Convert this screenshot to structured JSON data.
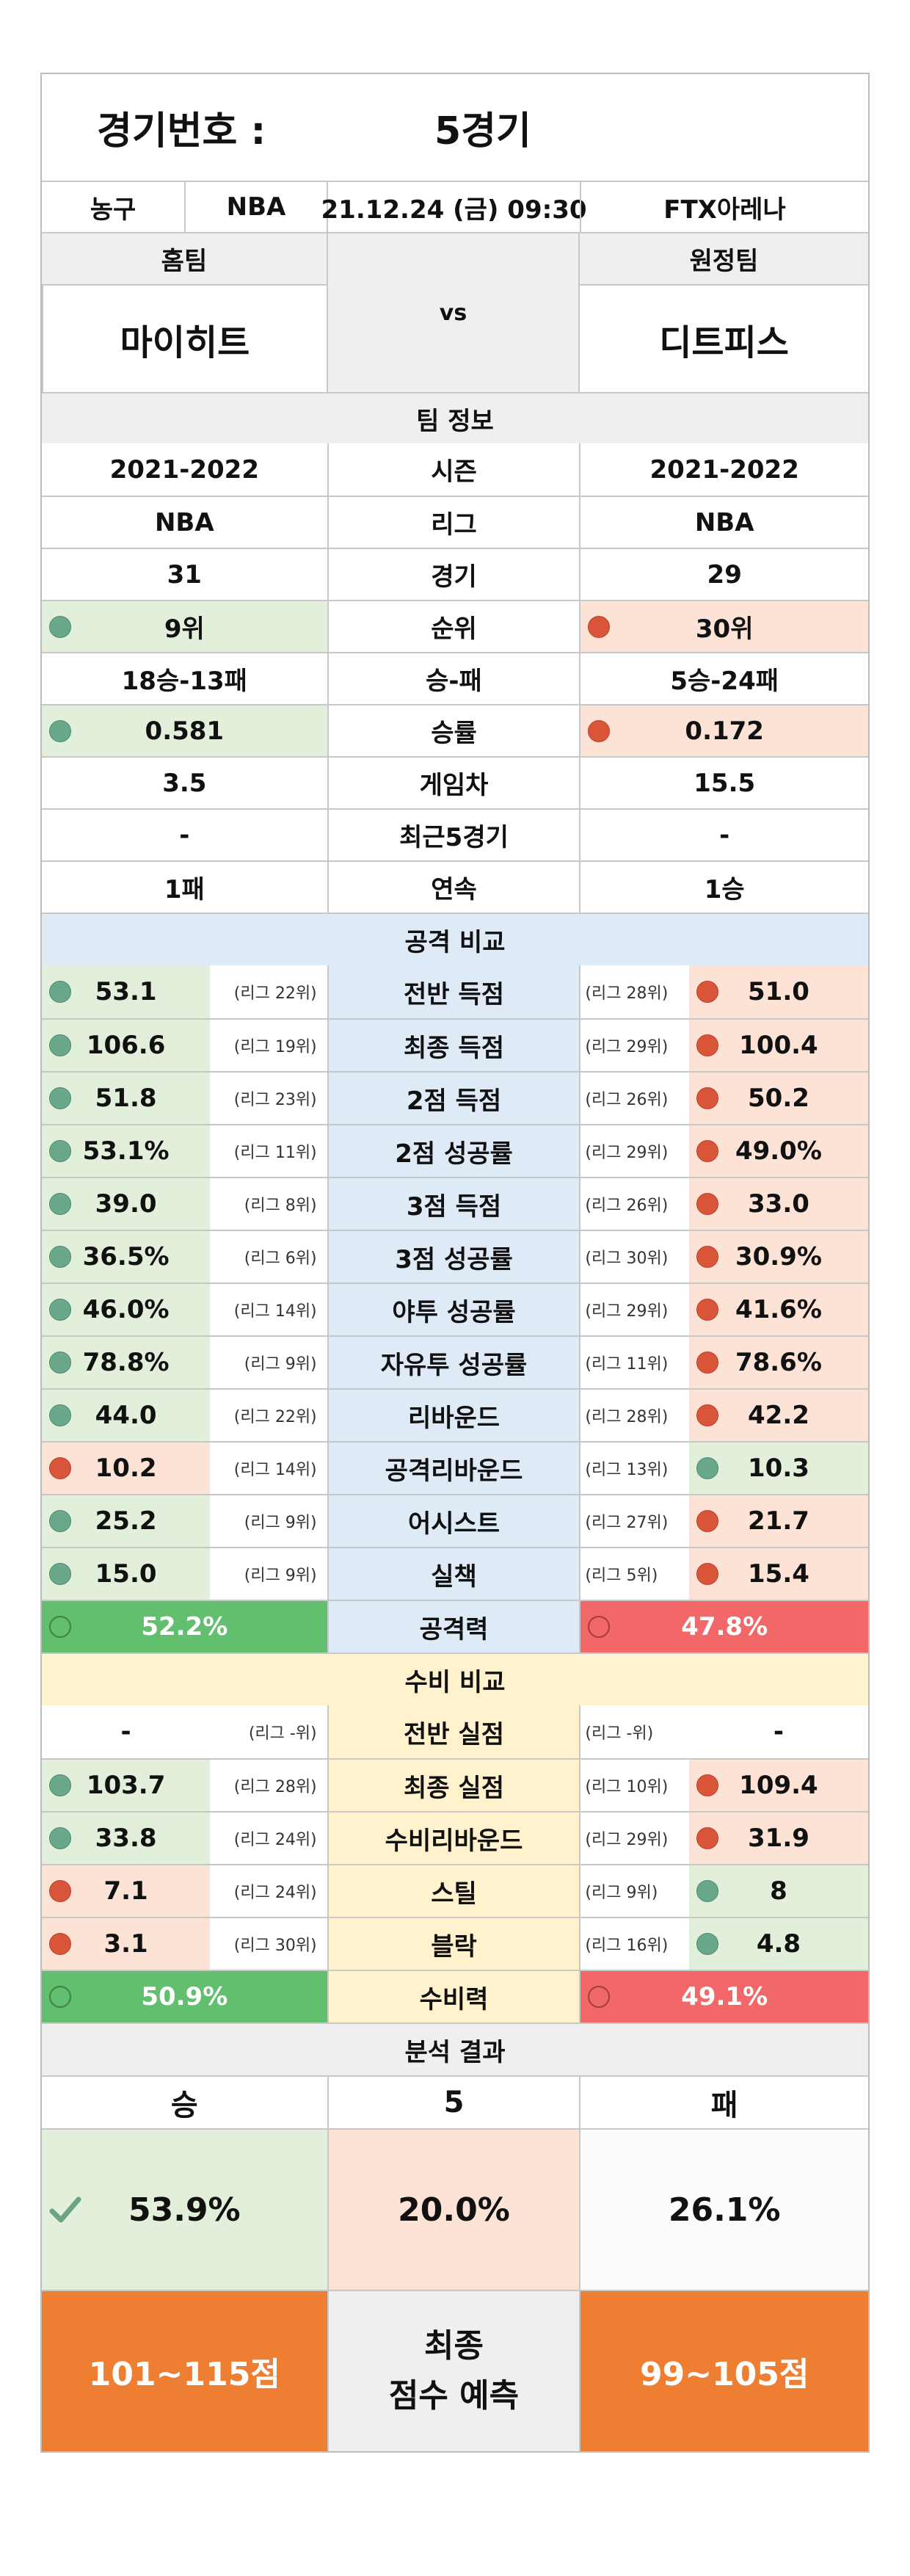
{
  "header": {
    "label": "경기번호 :",
    "value": "5경기"
  },
  "info": {
    "sport": "농구",
    "league": "NBA",
    "datetime": "21.12.24 (금) 09:30",
    "venue": "FTX아레나"
  },
  "teams": {
    "home_label": "홈팀",
    "away_label": "원정팀",
    "home": "마이히트",
    "away": "디트피스",
    "vs": "vs"
  },
  "team_info": {
    "section": "팀 정보",
    "rows": [
      {
        "home": "2021-2022",
        "label": "시즌",
        "away": "2021-2022"
      },
      {
        "home": "NBA",
        "label": "리그",
        "away": "NBA"
      },
      {
        "home": "31",
        "label": "경기",
        "away": "29"
      },
      {
        "home": "9위",
        "label": "순위",
        "away": "30위"
      },
      {
        "home": "18승-13패",
        "label": "승-패",
        "away": "5승-24패"
      },
      {
        "home": "0.581",
        "label": "승률",
        "away": "0.172"
      },
      {
        "home": "3.5",
        "label": "게임차",
        "away": "15.5"
      },
      {
        "home": "-",
        "label": "최근5경기",
        "away": "-"
      },
      {
        "home": "1패",
        "label": "연속",
        "away": "1승"
      }
    ]
  },
  "offense": {
    "section": "공격 비교",
    "rows": [
      {
        "label": "전반 득점",
        "home": "53.1",
        "home_rank": "(리그 22위)",
        "away_rank": "(리그 28위)",
        "away": "51.0",
        "home_win": true
      },
      {
        "label": "최종 득점",
        "home": "106.6",
        "home_rank": "(리그 19위)",
        "away_rank": "(리그 29위)",
        "away": "100.4",
        "home_win": true
      },
      {
        "label": "2점 득점",
        "home": "51.8",
        "home_rank": "(리그 23위)",
        "away_rank": "(리그 26위)",
        "away": "50.2",
        "home_win": true
      },
      {
        "label": "2점 성공률",
        "home": "53.1%",
        "home_rank": "(리그 11위)",
        "away_rank": "(리그 29위)",
        "away": "49.0%",
        "home_win": true
      },
      {
        "label": "3점 득점",
        "home": "39.0",
        "home_rank": "(리그 8위)",
        "away_rank": "(리그 26위)",
        "away": "33.0",
        "home_win": true
      },
      {
        "label": "3점 성공률",
        "home": "36.5%",
        "home_rank": "(리그 6위)",
        "away_rank": "(리그 30위)",
        "away": "30.9%",
        "home_win": true
      },
      {
        "label": "야투 성공률",
        "home": "46.0%",
        "home_rank": "(리그 14위)",
        "away_rank": "(리그 29위)",
        "away": "41.6%",
        "home_win": true
      },
      {
        "label": "자유투 성공률",
        "home": "78.8%",
        "home_rank": "(리그 9위)",
        "away_rank": "(리그 11위)",
        "away": "78.6%",
        "home_win": true
      },
      {
        "label": "리바운드",
        "home": "44.0",
        "home_rank": "(리그 22위)",
        "away_rank": "(리그 28위)",
        "away": "42.2",
        "home_win": true
      },
      {
        "label": "공격리바운드",
        "home": "10.2",
        "home_rank": "(리그 14위)",
        "away_rank": "(리그 13위)",
        "away": "10.3",
        "home_win": false
      },
      {
        "label": "어시스트",
        "home": "25.2",
        "home_rank": "(리그 9위)",
        "away_rank": "(리그 27위)",
        "away": "21.7",
        "home_win": true
      },
      {
        "label": "실책",
        "home": "15.0",
        "home_rank": "(리그 9위)",
        "away_rank": "(리그 5위)",
        "away": "15.4",
        "home_win": true
      }
    ],
    "total": {
      "label": "공격력",
      "home": "52.2%",
      "away": "47.8%"
    }
  },
  "defense": {
    "section": "수비 비교",
    "rows": [
      {
        "label": "전반 실점",
        "home": "-",
        "home_rank": "(리그 -위)",
        "away_rank": "(리그 -위)",
        "away": "-",
        "home_win": null
      },
      {
        "label": "최종 실점",
        "home": "103.7",
        "home_rank": "(리그 28위)",
        "away_rank": "(리그 10위)",
        "away": "109.4",
        "home_win": true
      },
      {
        "label": "수비리바운드",
        "home": "33.8",
        "home_rank": "(리그 24위)",
        "away_rank": "(리그 29위)",
        "away": "31.9",
        "home_win": true
      },
      {
        "label": "스틸",
        "home": "7.1",
        "home_rank": "(리그 24위)",
        "away_rank": "(리그 9위)",
        "away": "8",
        "home_win": false
      },
      {
        "label": "블락",
        "home": "3.1",
        "home_rank": "(리그 30위)",
        "away_rank": "(리그 16위)",
        "away": "4.8",
        "home_win": false
      }
    ],
    "total": {
      "label": "수비력",
      "home": "50.9%",
      "away": "49.1%"
    }
  },
  "result": {
    "section": "분석 결과",
    "win": "승",
    "draw": "5",
    "loss": "패",
    "win_pct": "53.9%",
    "draw_pct": "20.0%",
    "loss_pct": "26.1%",
    "predict_line1": "최종",
    "predict_line2": "점수 예측",
    "home_score": "101~115점",
    "away_score": "99~105점"
  },
  "colors": {
    "win_green": "#62bf6e",
    "lose_red": "#f26767",
    "orange": "#ee7f32"
  }
}
